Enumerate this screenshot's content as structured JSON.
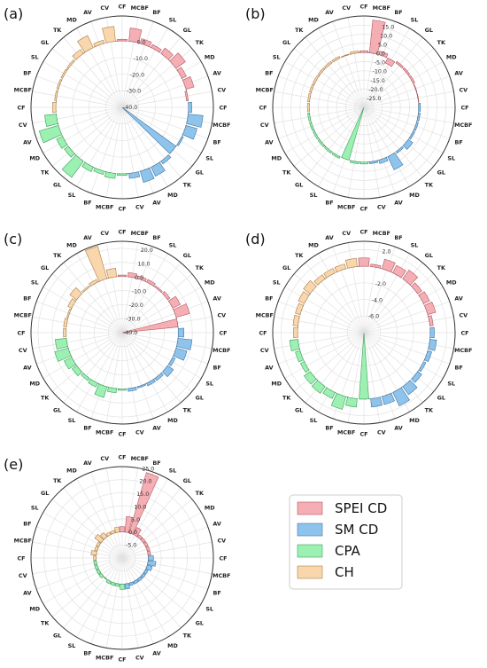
{
  "labels": [
    "CF",
    "MCBF",
    "BF",
    "SL",
    "GL",
    "TK",
    "MD",
    "AV",
    "CV",
    "CF",
    "MCBF",
    "BF",
    "SL",
    "GL",
    "TK",
    "MD",
    "AV",
    "CV",
    "CF",
    "MCBF",
    "BF",
    "SL",
    "GL",
    "TK",
    "MD",
    "AV",
    "CV",
    "CF",
    "MCBF",
    "BF",
    "SL",
    "GL",
    "TK",
    "MD",
    "AV",
    "CV"
  ],
  "series_colors": {
    "SPEI CD": "#f4aeb4",
    "SM CD": "#8ec4ec",
    "CPA": "#9cf0b2",
    "CH": "#f9d6ac"
  },
  "edge_colors": {
    "SPEI CD": "#b05a62",
    "SM CD": "#3f74a2",
    "CPA": "#3e9e5c",
    "CH": "#a9804c"
  },
  "legend": {
    "items": [
      {
        "name": "SPEI CD",
        "color": "#f4aeb4"
      },
      {
        "name": "SM CD",
        "color": "#8ec4ec"
      },
      {
        "name": "CPA",
        "color": "#9cf0b2"
      },
      {
        "name": "CH",
        "color": "#f9d6ac"
      }
    ]
  },
  "chart_data": [
    {
      "type": "radial-bar",
      "panel_label": "(a)",
      "rmin": -40,
      "rmax": 15,
      "ticks": [
        -40,
        -30,
        -20,
        -10,
        0
      ],
      "tick_labels": [
        "-40.0",
        "-30.0",
        "-20.0",
        "-10.0",
        "0.0"
      ],
      "series": [
        {
          "name": "SPEI CD",
          "values": [
            1,
            8,
            3,
            2,
            4,
            7,
            3,
            5,
            -1
          ]
        },
        {
          "name": "SM CD",
          "values": [
            2,
            9,
            7,
            1,
            -40,
            2,
            6,
            7,
            3
          ]
        },
        {
          "name": "CPA",
          "values": [
            1,
            3,
            2,
            3,
            12,
            3,
            4,
            12,
            7
          ]
        },
        {
          "name": "CH",
          "values": [
            2,
            1,
            1,
            1,
            1,
            3,
            8,
            2,
            9
          ]
        }
      ]
    },
    {
      "type": "radial-bar",
      "panel_label": "(b)",
      "rmin": -30,
      "rmax": 20,
      "ticks": [
        -25,
        -20,
        -15,
        -10,
        -5,
        0,
        5,
        10,
        15
      ],
      "tick_labels": [
        "-25.0",
        "-20.0",
        "-15.0",
        "-10.0",
        "-5.0",
        "0.0",
        "5.0",
        "10.0",
        "15.0"
      ],
      "series": [
        {
          "name": "SPEI CD",
          "values": [
            1,
            18,
            2,
            -3,
            1,
            1,
            1,
            0,
            0
          ]
        },
        {
          "name": "SM CD",
          "values": [
            1,
            1,
            1,
            1,
            3,
            1,
            8,
            2,
            1
          ]
        },
        {
          "name": "CPA",
          "values": [
            1,
            1,
            -30,
            1,
            1,
            1,
            1,
            1,
            1
          ]
        },
        {
          "name": "CH",
          "values": [
            1,
            1,
            1,
            1,
            1,
            1,
            1,
            0,
            1
          ]
        }
      ]
    },
    {
      "type": "radial-bar",
      "panel_label": "(c)",
      "rmin": -40,
      "rmax": 25,
      "ticks": [
        -40,
        -30,
        -20,
        -10,
        0,
        10,
        20
      ],
      "tick_labels": [
        "-40.0",
        "-30.0",
        "-20.0",
        "-10.0",
        "0.0",
        "10.0",
        "20.0"
      ],
      "series": [
        {
          "name": "SPEI CD",
          "values": [
            1,
            3,
            2,
            2,
            1,
            2,
            6,
            10,
            -40
          ]
        },
        {
          "name": "SM CD",
          "values": [
            4,
            10,
            8,
            2,
            5,
            2,
            2,
            1,
            2
          ]
        },
        {
          "name": "CPA",
          "values": [
            1,
            3,
            8,
            3,
            2,
            4,
            6,
            10,
            8
          ]
        },
        {
          "name": "CH",
          "values": [
            2,
            2,
            1,
            3,
            6,
            1,
            2,
            24,
            6
          ]
        }
      ]
    },
    {
      "type": "radial-bar",
      "panel_label": "(d)",
      "rmin": -8,
      "rmax": 3,
      "ticks": [
        -6,
        -4,
        -2,
        2
      ],
      "tick_labels": [
        "-6.0",
        "-4.0",
        "-2.0",
        "2.0"
      ],
      "series": [
        {
          "name": "SPEI CD",
          "values": [
            1.0,
            0.3,
            1.2,
            1.0,
            1.3,
            0.6,
            0.8,
            1.0,
            0.4
          ]
        },
        {
          "name": "SM CD",
          "values": [
            0.5,
            0.8,
            0.5,
            0.3,
            0.6,
            1.2,
            1.8,
            1.0,
            1.0
          ]
        },
        {
          "name": "CPA",
          "values": [
            -8,
            1.0,
            1.6,
            0.8,
            1.0,
            0.9,
            0.5,
            0.6,
            1.0
          ]
        },
        {
          "name": "CH",
          "values": [
            0.5,
            0.6,
            0.6,
            0.8,
            1.0,
            0.6,
            0.6,
            0.6,
            1.0
          ]
        }
      ]
    },
    {
      "type": "radial-bar",
      "panel_label": "(e)",
      "rmin": -10,
      "rmax": 25,
      "ticks": [
        -5,
        0,
        5,
        10,
        15,
        20,
        25
      ],
      "tick_labels": [
        "-5.0",
        "0.0",
        "5.0",
        "10.0",
        "15.0",
        "20.0",
        "25.0"
      ],
      "series": [
        {
          "name": "SPEI CD",
          "values": [
            2,
            6,
            24,
            3,
            1,
            1,
            1,
            1,
            1
          ]
        },
        {
          "name": "SM CD",
          "values": [
            2,
            3,
            2,
            1,
            1,
            1,
            1,
            1,
            2
          ]
        },
        {
          "name": "CPA",
          "values": [
            2,
            1,
            1,
            1,
            0,
            1,
            1,
            1,
            1
          ]
        },
        {
          "name": "CH",
          "values": [
            1,
            2,
            1,
            1,
            3,
            2,
            1,
            1,
            2
          ]
        }
      ]
    }
  ]
}
